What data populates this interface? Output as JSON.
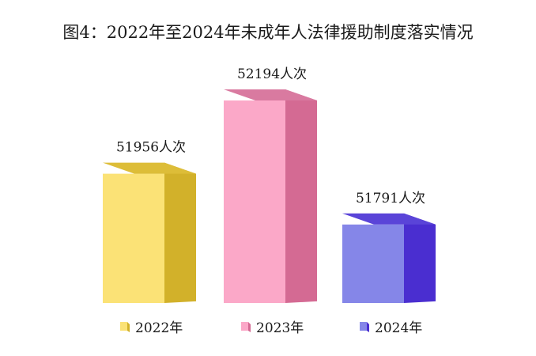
{
  "chart_data": {
    "type": "bar",
    "title": "图4：2022年至2024年未成年人法律援助制度落实情况",
    "categories": [
      "2022年",
      "2023年",
      "2024年"
    ],
    "values": [
      51956,
      52194,
      51791
    ],
    "value_labels": [
      "51956人次",
      "52194人次",
      "51791人次"
    ],
    "unit": "人次",
    "legend": [
      "2022年",
      "2023年",
      "2024年"
    ],
    "legend_position": "bottom",
    "grid": false,
    "style": "3d-box",
    "colors": {
      "2022年": {
        "front": "#fbe276",
        "side": "#d2b12a",
        "top": "#ddbd38"
      },
      "2023年": {
        "front": "#fba8c8",
        "side": "#d46a93",
        "top": "#d97aa0"
      },
      "2024年": {
        "front": "#8586e8",
        "side": "#4a2ed0",
        "top": "#5a44d8"
      }
    }
  }
}
